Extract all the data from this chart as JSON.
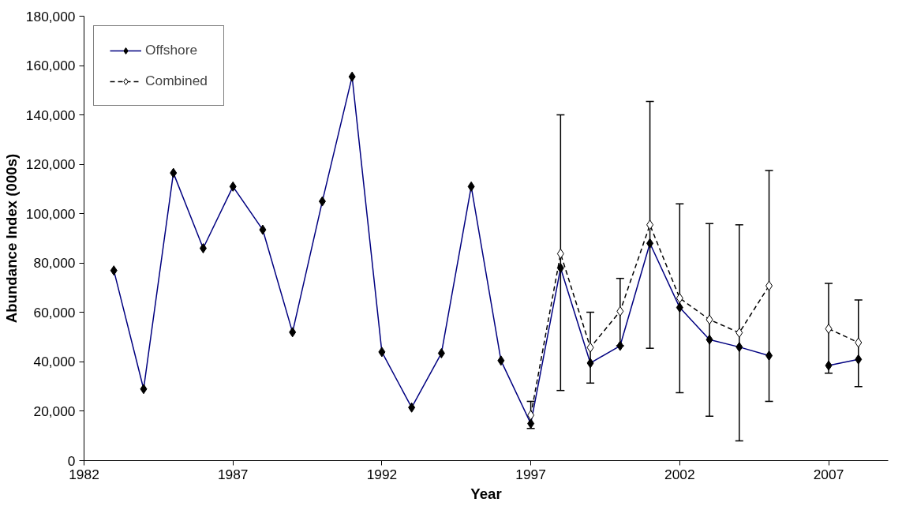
{
  "chart_data": {
    "type": "line",
    "xlabel": "Year",
    "ylabel": "Abundance Index (000s)",
    "x": [
      1983,
      1984,
      1985,
      1986,
      1987,
      1988,
      1989,
      1990,
      1991,
      1992,
      1993,
      1994,
      1995,
      1996,
      1997,
      1998,
      1999,
      2000,
      2001,
      2002,
      2003,
      2004,
      2005,
      2006,
      2007,
      2008
    ],
    "series": [
      {
        "name": "Offshore",
        "color": "#000080",
        "line_style": "solid",
        "values": [
          77000,
          29000,
          116500,
          86000,
          111000,
          93500,
          52000,
          105000,
          155500,
          44000,
          21500,
          43500,
          111000,
          40500,
          15000,
          78000,
          39500,
          46500,
          88000,
          62000,
          49000,
          46000,
          42500,
          null,
          38500,
          41000
        ]
      },
      {
        "name": "Combined",
        "color": "#000000",
        "line_style": "dashed",
        "values": [
          null,
          null,
          null,
          null,
          null,
          null,
          null,
          null,
          null,
          null,
          null,
          null,
          null,
          null,
          18400,
          83800,
          45800,
          60500,
          95500,
          65800,
          57100,
          51800,
          70800,
          null,
          53400,
          47800
        ],
        "errors": [
          null,
          null,
          null,
          null,
          null,
          null,
          null,
          null,
          null,
          null,
          null,
          null,
          null,
          null,
          [
            13000,
            24000
          ],
          [
            28400,
            140000
          ],
          [
            31400,
            60100
          ],
          [
            46500,
            73800
          ],
          [
            45500,
            145500
          ],
          [
            27500,
            104000
          ],
          [
            18000,
            96000
          ],
          [
            8000,
            95500
          ],
          [
            24000,
            117500
          ],
          null,
          [
            35400,
            71800
          ],
          [
            30000,
            65100
          ]
        ]
      }
    ],
    "xlim": [
      1982,
      2009
    ],
    "xticks": [
      1982,
      1987,
      1992,
      1997,
      2002,
      2007
    ],
    "ylim": [
      0,
      180000
    ],
    "yticks": [
      {
        "value": 0,
        "label": "0"
      },
      {
        "value": 20000,
        "label": "20,000"
      },
      {
        "value": 40000,
        "label": "40,000"
      },
      {
        "value": 60000,
        "label": "60,000"
      },
      {
        "value": 80000,
        "label": "80,000"
      },
      {
        "value": 100000,
        "label": "100,000"
      },
      {
        "value": 120000,
        "label": "120,000"
      },
      {
        "value": 140000,
        "label": "140,000"
      },
      {
        "value": 160000,
        "label": "160,000"
      },
      {
        "value": 180000,
        "label": "180,000"
      }
    ],
    "grid": false,
    "legend": "top left",
    "marker": "diamond"
  }
}
